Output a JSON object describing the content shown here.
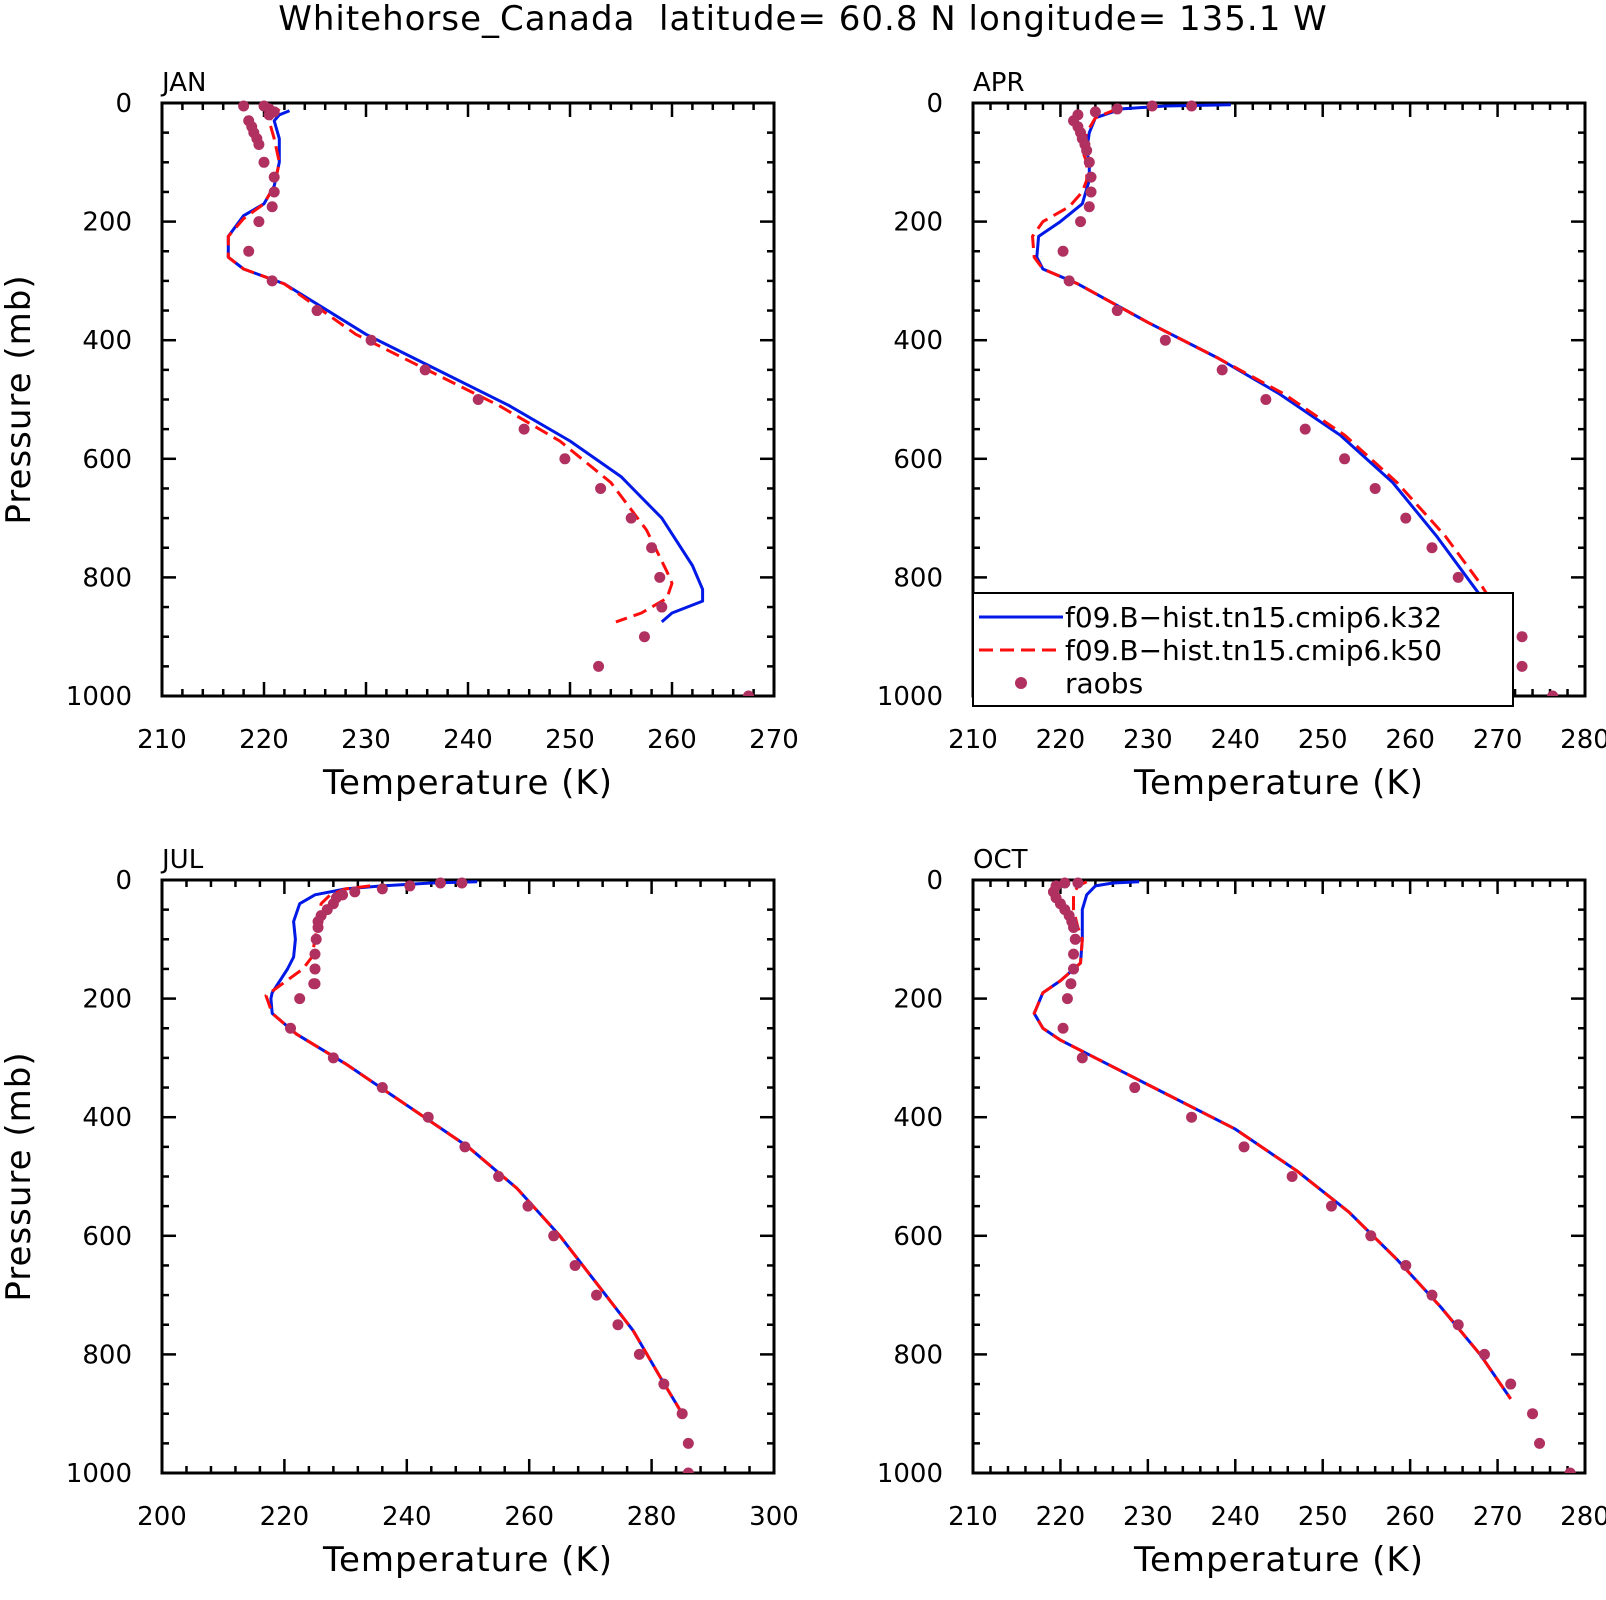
{
  "figure": {
    "title": "Whitehorse_Canada  latitude= 60.8 N longitude= 135.1 W"
  },
  "colors": {
    "model_k32": "#0019e6",
    "model_k50": "#ff0d0d",
    "raobs": "#b03060"
  },
  "legend": {
    "entries": [
      {
        "label": "f09.B−hist.tn15.cmip6.k32",
        "style": "solid",
        "color_key": "model_k32"
      },
      {
        "label": "f09.B−hist.tn15.cmip6.k50",
        "style": "dashed",
        "color_key": "model_k50"
      },
      {
        "label": "raobs",
        "style": "marker",
        "color_key": "raobs"
      }
    ]
  },
  "chart_data": [
    {
      "type": "line",
      "title": "JAN",
      "xlabel": "Temperature (K)",
      "ylabel": "Pressure (mb)",
      "xlim": [
        210,
        270
      ],
      "ylim": [
        1000,
        0
      ],
      "xticks": [
        210,
        220,
        230,
        240,
        250,
        260,
        270
      ],
      "yticks": [
        0,
        200,
        400,
        600,
        800,
        1000
      ],
      "show_legend": false,
      "series": [
        {
          "name": "f09.B−hist.tn15.cmip6.k32",
          "style": "solid",
          "color_key": "model_k32",
          "x": [
            222.5,
            221.5,
            221,
            221.5,
            221.5,
            221,
            220,
            218,
            216.5,
            216.5,
            218,
            222,
            230,
            237,
            244,
            250,
            255,
            259,
            262,
            263,
            263,
            260,
            259
          ],
          "y": [
            13,
            20,
            30,
            60,
            100,
            140,
            170,
            190,
            225,
            260,
            280,
            305,
            390,
            450,
            510,
            570,
            630,
            700,
            780,
            820,
            840,
            860,
            875
          ]
        },
        {
          "name": "f09.B−hist.tn15.cmip6.k50",
          "style": "dashed",
          "color_key": "model_k50",
          "x": [
            221.5,
            221,
            220.5,
            221,
            221.5,
            221,
            220,
            218,
            216.5,
            216.5,
            218,
            222,
            229,
            236,
            243,
            249,
            254,
            257.5,
            259.5,
            260,
            259.5,
            257,
            254.5
          ],
          "y": [
            10,
            20,
            30,
            60,
            100,
            140,
            170,
            195,
            225,
            260,
            280,
            305,
            390,
            450,
            510,
            570,
            640,
            720,
            790,
            810,
            835,
            860,
            875
          ]
        },
        {
          "name": "raobs",
          "style": "marker",
          "color_key": "raobs",
          "x": [
            218,
            220,
            220.5,
            221,
            220.5,
            218.5,
            218.8,
            219,
            219.3,
            219.5,
            220,
            221,
            221,
            220.8,
            219.5,
            218.5,
            220.8,
            225.2,
            230.5,
            235.8,
            241,
            245.5,
            249.5,
            253,
            256,
            258,
            258.8,
            259,
            257.3,
            252.8,
            267.5
          ],
          "y": [
            5,
            5,
            10,
            15,
            20,
            30,
            40,
            50,
            60,
            70,
            100,
            125,
            150,
            175,
            200,
            250,
            300,
            350,
            400,
            450,
            500,
            550,
            600,
            650,
            700,
            750,
            800,
            850,
            900,
            950,
            1000
          ]
        }
      ]
    },
    {
      "type": "line",
      "title": "APR",
      "xlabel": "Temperature (K)",
      "ylabel": "",
      "xlim": [
        210,
        280
      ],
      "ylim": [
        1000,
        0
      ],
      "xticks": [
        210,
        220,
        230,
        240,
        250,
        260,
        270,
        280
      ],
      "yticks": [
        0,
        200,
        400,
        600,
        800,
        1000
      ],
      "show_legend": true,
      "series": [
        {
          "name": "f09.B−hist.tn15.cmip6.k32",
          "style": "solid",
          "color_key": "model_k32",
          "x": [
            239.5,
            232,
            227,
            224,
            223.3,
            223,
            223.3,
            223.3,
            222.5,
            220,
            217.5,
            217.3,
            218,
            222,
            230,
            238,
            245,
            252,
            258,
            263,
            267,
            270.5
          ],
          "y": [
            3,
            5,
            10,
            25,
            50,
            80,
            100,
            130,
            170,
            200,
            225,
            260,
            280,
            305,
            370,
            430,
            490,
            560,
            640,
            730,
            810,
            880
          ]
        },
        {
          "name": "f09.B−hist.tn15.cmip6.k50",
          "style": "dashed",
          "color_key": "model_k50",
          "x": [
            226.5,
            224,
            223,
            222.5,
            223,
            223,
            222.5,
            221,
            218,
            216.8,
            217,
            218,
            222,
            230,
            238,
            245.5,
            252.5,
            258.5,
            264,
            268,
            271
          ],
          "y": [
            10,
            25,
            50,
            80,
            100,
            130,
            150,
            175,
            200,
            225,
            260,
            280,
            305,
            370,
            430,
            490,
            560,
            640,
            730,
            810,
            880
          ]
        },
        {
          "name": "raobs",
          "style": "marker",
          "color_key": "raobs",
          "x": [
            235,
            230.5,
            226.5,
            224,
            222,
            221.5,
            222,
            222.3,
            222.5,
            222.8,
            223,
            223.3,
            223.5,
            223.5,
            223.3,
            222.3,
            220.3,
            221,
            226.5,
            232,
            238.5,
            243.5,
            248,
            252.5,
            256,
            259.5,
            262.5,
            265.5,
            268.5,
            270.5,
            272.8,
            272.8,
            276.3
          ],
          "y": [
            5,
            5,
            10,
            15,
            20,
            30,
            40,
            50,
            60,
            70,
            80,
            100,
            125,
            150,
            175,
            200,
            250,
            300,
            350,
            400,
            450,
            500,
            550,
            600,
            650,
            700,
            750,
            800,
            850,
            880,
            900,
            950,
            1000
          ]
        }
      ]
    },
    {
      "type": "line",
      "title": "JUL",
      "xlabel": "Temperature (K)",
      "ylabel": "Pressure (mb)",
      "xlim": [
        200,
        300
      ],
      "ylim": [
        1000,
        0
      ],
      "xticks": [
        200,
        220,
        240,
        260,
        280,
        300
      ],
      "yticks": [
        0,
        200,
        400,
        600,
        800,
        1000
      ],
      "show_legend": false,
      "series": [
        {
          "name": "f09.B−hist.tn15.cmip6.k32",
          "style": "solid",
          "color_key": "model_k32",
          "x": [
            251.5,
            244,
            236,
            230,
            225,
            222.5,
            221.5,
            221.8,
            221.5,
            220.5,
            218,
            217.8,
            218,
            222,
            230,
            240,
            250,
            258,
            265,
            271,
            277,
            281.5,
            285
          ],
          "y": [
            3,
            5,
            10,
            15,
            25,
            40,
            70,
            100,
            130,
            150,
            190,
            200,
            225,
            260,
            310,
            380,
            450,
            520,
            600,
            680,
            760,
            840,
            900
          ]
        },
        {
          "name": "f09.B−hist.tn15.cmip6.k50",
          "style": "dashed",
          "color_key": "model_k50",
          "x": [
            234,
            230,
            227.5,
            226,
            225.5,
            225,
            224.5,
            223,
            217,
            218,
            222,
            230,
            240,
            250,
            258,
            265,
            271,
            277,
            281.5,
            285
          ],
          "y": [
            10,
            15,
            25,
            40,
            70,
            100,
            130,
            150,
            195,
            225,
            260,
            310,
            380,
            450,
            520,
            600,
            680,
            760,
            840,
            900
          ]
        },
        {
          "name": "raobs",
          "style": "marker",
          "color_key": "raobs",
          "x": [
            249,
            245.5,
            240.5,
            236,
            231.5,
            229.5,
            228.5,
            228,
            227,
            226,
            225.5,
            225.5,
            225.2,
            225,
            225,
            225,
            224.8,
            222.5,
            221,
            228,
            236,
            243.5,
            249.5,
            255,
            259.8,
            264,
            267.5,
            271,
            274.5,
            278,
            282,
            285,
            286,
            286
          ],
          "y": [
            5,
            5,
            10,
            15,
            20,
            25,
            30,
            40,
            50,
            60,
            70,
            80,
            100,
            125,
            150,
            175,
            175,
            200,
            250,
            300,
            350,
            400,
            450,
            500,
            550,
            600,
            650,
            700,
            750,
            800,
            850,
            900,
            950,
            1000
          ]
        }
      ]
    },
    {
      "type": "line",
      "title": "OCT",
      "xlabel": "Temperature (K)",
      "ylabel": "",
      "xlim": [
        210,
        280
      ],
      "ylim": [
        1000,
        0
      ],
      "xticks": [
        210,
        220,
        230,
        240,
        250,
        260,
        270,
        280
      ],
      "yticks": [
        0,
        200,
        400,
        600,
        800,
        1000
      ],
      "show_legend": false,
      "series": [
        {
          "name": "f09.B−hist.tn15.cmip6.k32",
          "style": "solid",
          "color_key": "model_k32",
          "x": [
            229,
            226,
            224,
            223,
            222.5,
            222.5,
            222.3,
            220,
            218,
            217,
            218,
            220,
            224,
            232,
            240,
            247,
            253,
            258.5,
            263.5,
            268,
            271.5
          ],
          "y": [
            3,
            5,
            10,
            25,
            50,
            100,
            140,
            170,
            190,
            225,
            250,
            270,
            300,
            360,
            420,
            490,
            560,
            640,
            720,
            800,
            875
          ]
        },
        {
          "name": "f09.B−hist.tn15.cmip6.k50",
          "style": "dashed",
          "color_key": "model_k50",
          "x": [
            223,
            222,
            221.5,
            221.5,
            222,
            222.5,
            222.3,
            220,
            218,
            217,
            218,
            220,
            224,
            232,
            240,
            247,
            253,
            258.5,
            263.5,
            268,
            271.5
          ],
          "y": [
            3,
            10,
            25,
            50,
            80,
            100,
            140,
            170,
            190,
            225,
            250,
            270,
            300,
            360,
            420,
            490,
            560,
            640,
            720,
            800,
            875
          ]
        },
        {
          "name": "raobs",
          "style": "marker",
          "color_key": "raobs",
          "x": [
            222,
            220.5,
            219.5,
            219.2,
            219.5,
            220,
            220.5,
            221,
            221.3,
            221.5,
            221.7,
            221.5,
            221.5,
            221.2,
            220.8,
            220.3,
            222.5,
            228.5,
            235,
            241,
            246.5,
            251,
            255.5,
            259.5,
            262.5,
            265.5,
            268.5,
            271.5,
            274,
            274.8,
            278.3
          ],
          "y": [
            5,
            5,
            10,
            20,
            30,
            40,
            50,
            60,
            70,
            80,
            100,
            125,
            150,
            175,
            200,
            250,
            300,
            350,
            400,
            450,
            500,
            550,
            600,
            650,
            700,
            750,
            800,
            850,
            900,
            950,
            1000
          ]
        }
      ]
    }
  ]
}
